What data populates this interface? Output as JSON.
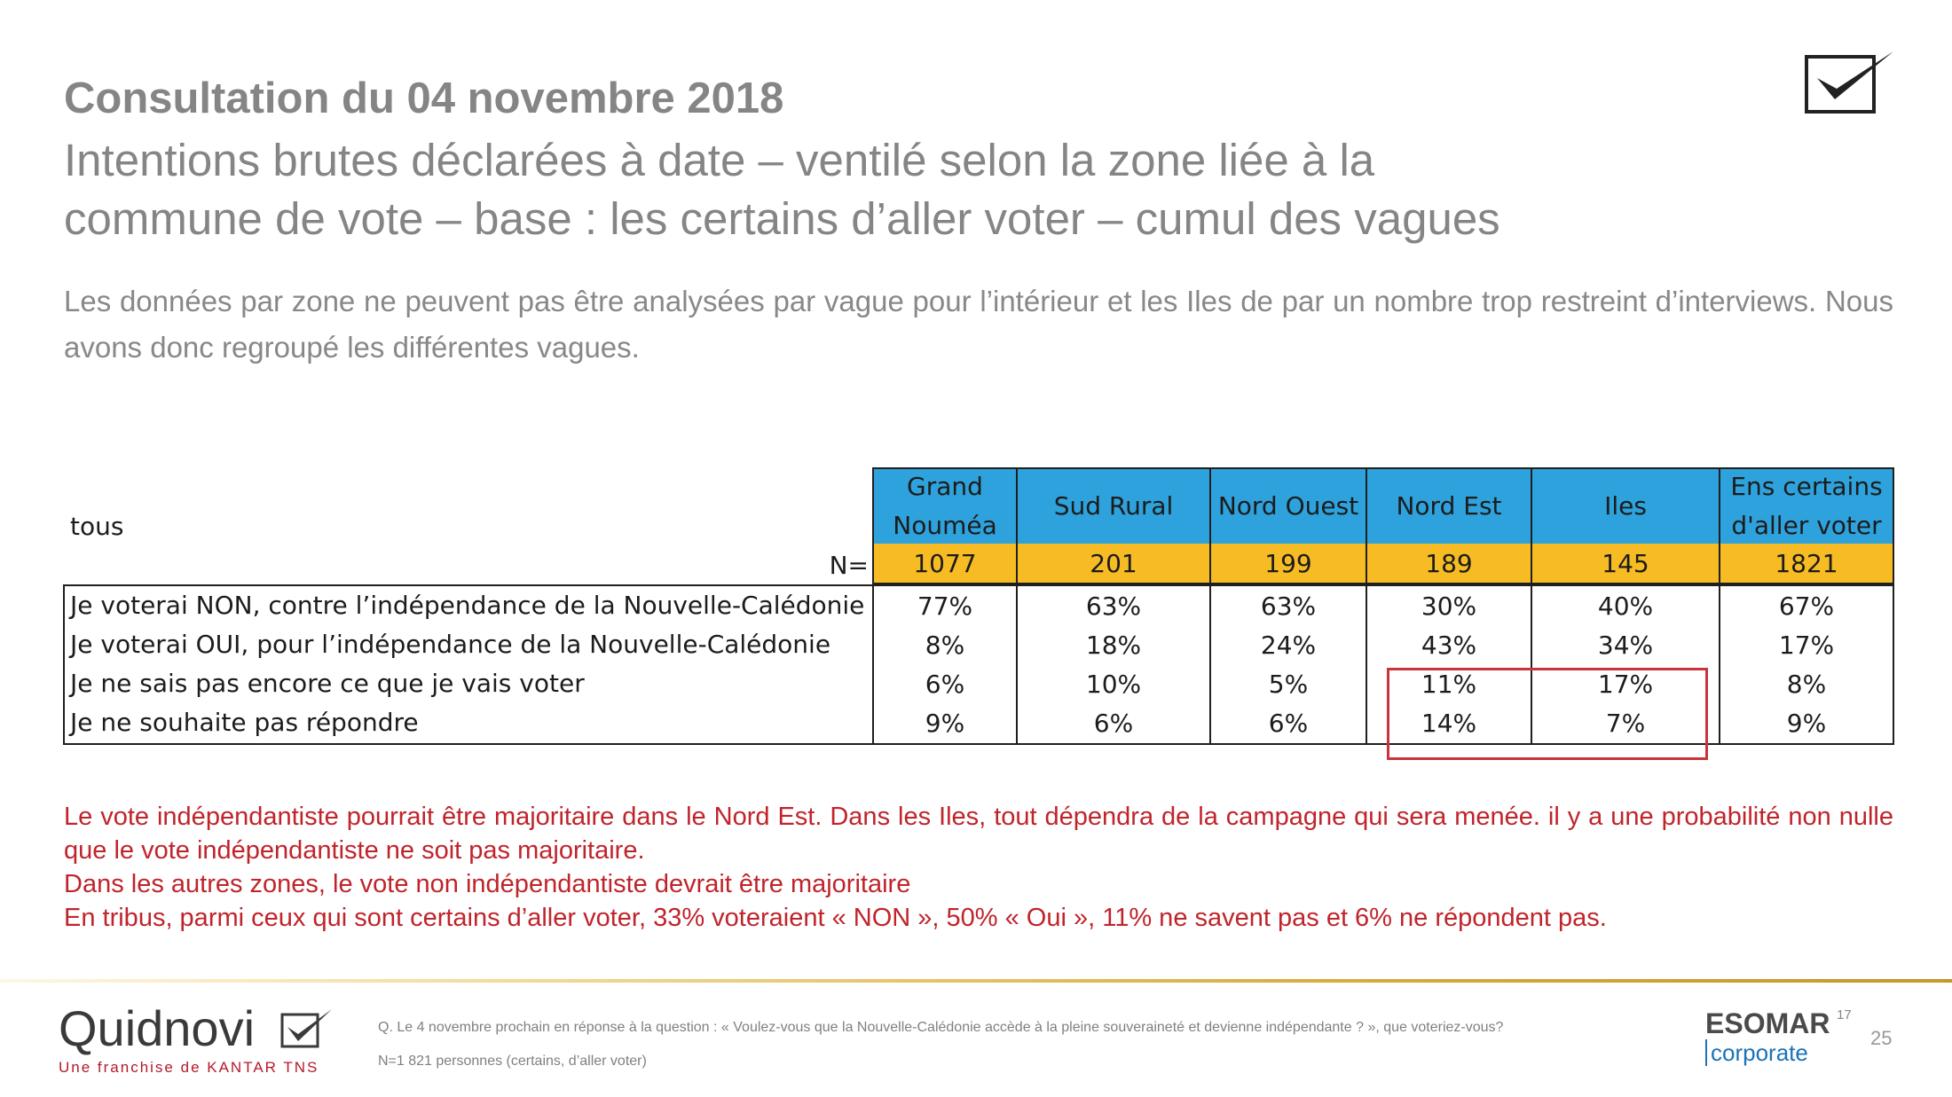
{
  "header": {
    "title": "Consultation du 04 novembre 2018",
    "subtitle_lines": [
      "Intentions brutes déclarées à date – ventilé selon la zone liée à la",
      "commune de vote – base : les certains d’aller voter – cumul des vagues"
    ],
    "logo_icon": "checkmark-box-icon"
  },
  "intro": "Les données par zone ne peuvent pas être analysées par vague pour l’intérieur et les Iles de par un nombre trop restreint d’interviews. Nous avons donc regroupé les différentes vagues.",
  "table": {
    "corner_label": "tous",
    "n_label": "N=",
    "columns": [
      {
        "header_lines": [
          "Grand",
          "Nouméa"
        ],
        "n": "1077"
      },
      {
        "header_lines": [
          "Sud Rural"
        ],
        "n": "201"
      },
      {
        "header_lines": [
          "Nord Ouest"
        ],
        "n": "199"
      },
      {
        "header_lines": [
          "Nord Est"
        ],
        "n": "189"
      },
      {
        "header_lines": [
          "Iles"
        ],
        "n": "145"
      },
      {
        "header_lines": [
          "Ens certains",
          "d'aller voter"
        ],
        "n": "1821"
      }
    ],
    "rows": [
      {
        "label": "Je voterai NON, contre l’indépendance de la Nouvelle-Calédonie",
        "values": [
          "77%",
          "63%",
          "63%",
          "30%",
          "40%",
          "67%"
        ]
      },
      {
        "label": "Je voterai OUI, pour l’indépendance de la Nouvelle-Calédonie",
        "values": [
          "8%",
          "18%",
          "24%",
          "43%",
          "34%",
          "17%"
        ]
      },
      {
        "label": "Je ne sais pas encore ce que je vais voter",
        "values": [
          "6%",
          "10%",
          "5%",
          "11%",
          "17%",
          "8%"
        ]
      },
      {
        "label": "Je ne souhaite pas répondre",
        "values": [
          "9%",
          "6%",
          "6%",
          "14%",
          "7%",
          "9%"
        ]
      }
    ],
    "header_color": "#2ea2dc",
    "n_row_color": "#f7bc24",
    "highlight_color": "#c8353b"
  },
  "conclusion": {
    "paragraph1": "Le vote indépendantiste pourrait être majoritaire dans le Nord Est. Dans les Iles, tout dépendra de la campagne qui sera menée. il y a une probabilité non nulle que le vote indépendantiste ne soit pas majoritaire.",
    "line2": "Dans les autres zones, le vote non indépendantiste devrait être majoritaire",
    "line3": "En tribus, parmi ceux qui sont certains d’aller voter, 33% voteraient « NON », 50% « Oui », 11% ne savent pas et 6% ne répondent pas.",
    "color": "#c0242b"
  },
  "footer": {
    "brand": "Quidnovi",
    "brand_tagline": "Une franchise de KANTAR TNS",
    "question": "Q. Le 4 novembre prochain en réponse à la question : « Voulez-vous que la Nouvelle-Calédonie accède à la pleine souveraineté et devienne indépendante ? », que voteriez-vous?",
    "base": "N=1 821 personnes (certains, d’aller voter)",
    "esomar": "ESOMAR",
    "esomar_year": "17",
    "esomar_sub": "corporate",
    "page_number": "25"
  }
}
